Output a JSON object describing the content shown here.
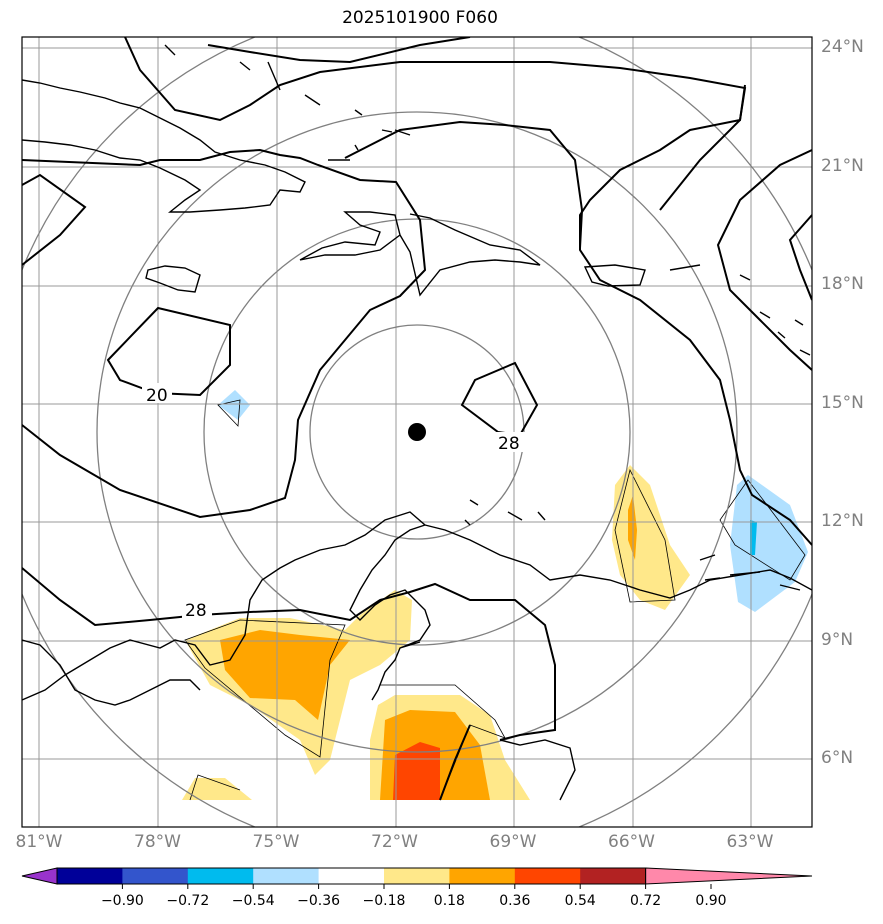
{
  "title": "2025101900 F060",
  "lon_labels": [
    {
      "lon": -81,
      "text": "81°W"
    },
    {
      "lon": -78,
      "text": "78°W"
    },
    {
      "lon": -75,
      "text": "75°W"
    },
    {
      "lon": -72,
      "text": "72°W"
    },
    {
      "lon": -69,
      "text": "69°W"
    },
    {
      "lon": -66,
      "text": "66°W"
    },
    {
      "lon": -63,
      "text": "63°W"
    }
  ],
  "lat_labels": [
    {
      "lat": 24,
      "text": "24°N"
    },
    {
      "lat": 21,
      "text": "21°N"
    },
    {
      "lat": 18,
      "text": "18°N"
    },
    {
      "lat": 15,
      "text": "15°N"
    },
    {
      "lat": 12,
      "text": "12°N"
    },
    {
      "lat": 9,
      "text": "9°N"
    },
    {
      "lat": 6,
      "text": "6°N"
    }
  ],
  "storm_center": {
    "lon": -71.5,
    "lat": 14.3
  },
  "range_rings_deg": [
    2.7,
    5.4,
    8.1,
    10.8
  ],
  "contour_labels": [
    "20",
    "28",
    "28"
  ],
  "colorbar": {
    "colors": [
      "#9933cc",
      "#000099",
      "#3355cc",
      "#00bbee",
      "#b0e0ff",
      "#ffffff",
      "#ffe88a",
      "#ffa500",
      "#ff4500",
      "#b22222",
      "#ff88aa"
    ],
    "ticks": [
      "−0.90",
      "−0.72",
      "−0.54",
      "−0.36",
      "−0.18",
      "0.18",
      "0.36",
      "0.54",
      "0.72",
      "0.90"
    ]
  }
}
